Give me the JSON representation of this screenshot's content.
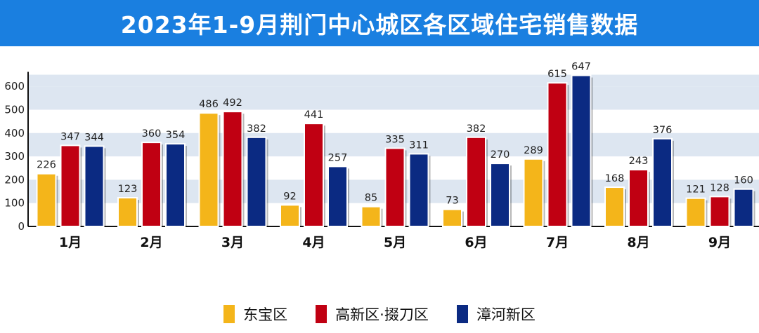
{
  "title": "2023年1-9月荆门中心城区各区域住宅销售数据",
  "chart_data": {
    "type": "bar",
    "categories": [
      "1月",
      "2月",
      "3月",
      "4月",
      "5月",
      "6月",
      "7月",
      "8月",
      "9月"
    ],
    "series": [
      {
        "name": "东宝区",
        "color": "#f4b51a",
        "values": [
          226,
          123,
          486,
          92,
          85,
          73,
          289,
          168,
          121
        ]
      },
      {
        "name": "高新区·掇刀区",
        "color": "#c00012",
        "values": [
          347,
          360,
          492,
          441,
          335,
          382,
          615,
          243,
          128
        ]
      },
      {
        "name": "漳河新区",
        "color": "#0b2a82",
        "values": [
          344,
          354,
          382,
          257,
          311,
          270,
          647,
          376,
          160
        ]
      }
    ],
    "yticks": [
      0,
      100,
      200,
      300,
      400,
      500,
      600
    ],
    "ylim": [
      0,
      650
    ],
    "grid": "alternating horizontal bands",
    "legend_position": "bottom"
  }
}
